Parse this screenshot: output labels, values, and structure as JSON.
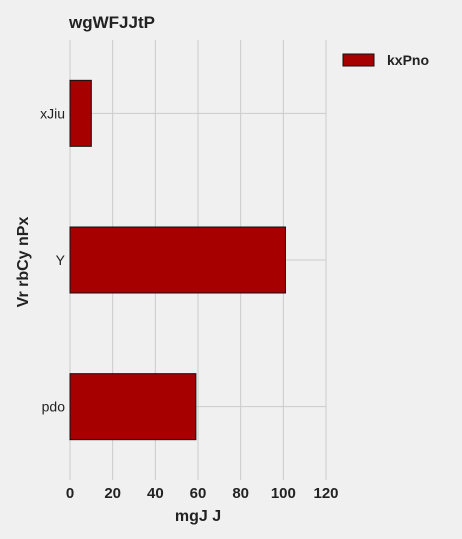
{
  "chart_data": {
    "type": "bar",
    "orientation": "horizontal",
    "title": "wgWFJJtP",
    "xlabel": "mgJ J",
    "ylabel": "Vr rbCy nPx",
    "categories": [
      "xJiu",
      "Y",
      "pdo"
    ],
    "series": [
      {
        "name": "kxPno",
        "values": [
          10,
          101,
          59
        ]
      }
    ],
    "xlim": [
      0,
      120
    ],
    "xticks": [
      0,
      20,
      40,
      60,
      80,
      100,
      120
    ],
    "grid": true,
    "legend_position": "top-right",
    "colors": {
      "bar": "#a60000",
      "bar_edge": "#111111",
      "background": "#f0f0f0",
      "grid": "#cbcbcb"
    }
  }
}
